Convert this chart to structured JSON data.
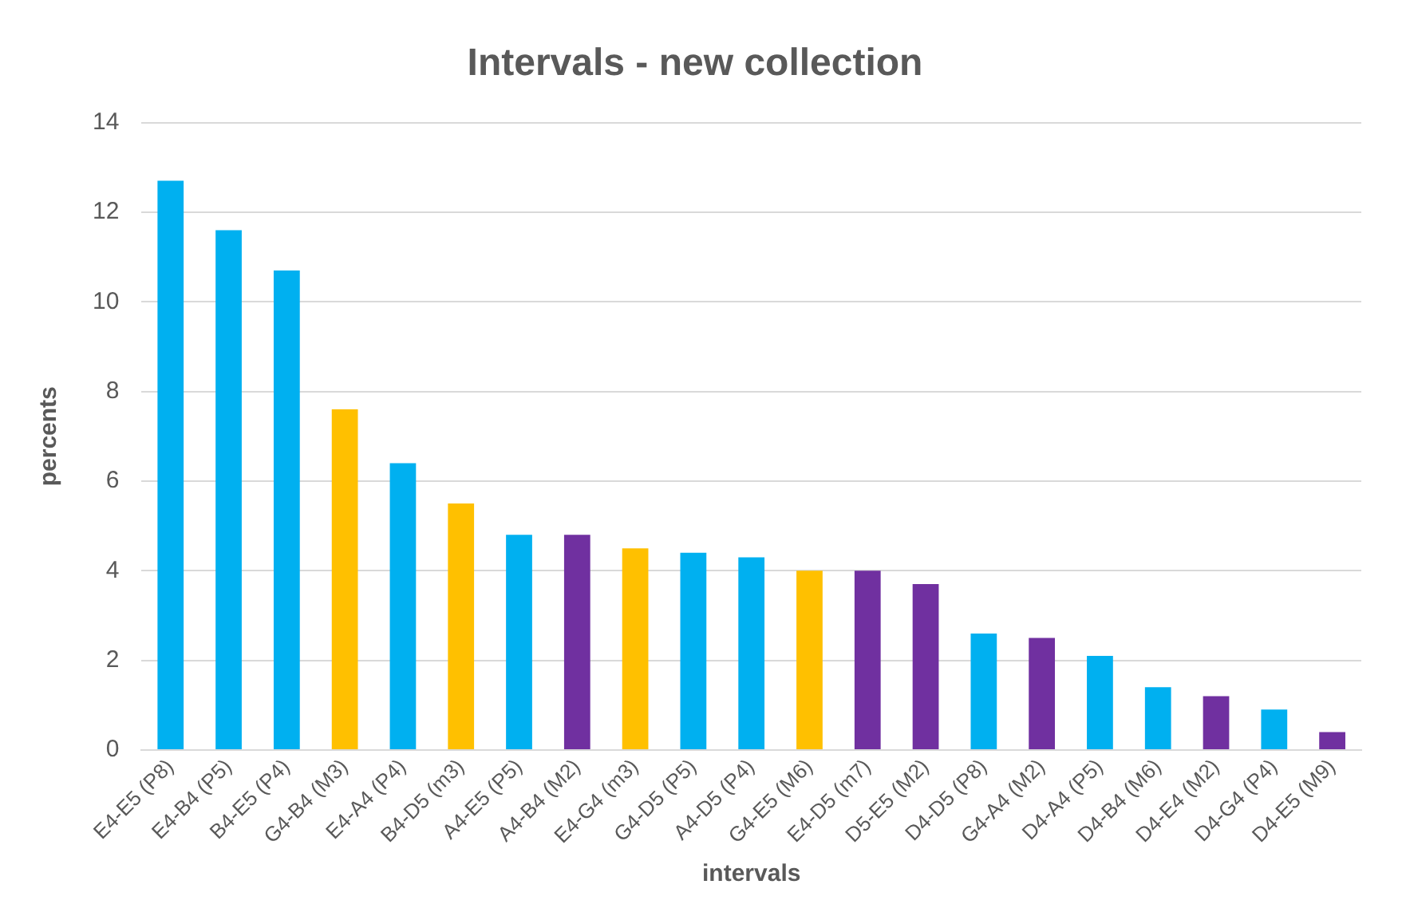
{
  "chart_data": {
    "type": "bar",
    "title": "Intervals - new collection",
    "xlabel": "intervals",
    "ylabel": "percents",
    "categories": [
      "E4-E5 (P8)",
      "E4-B4 (P5)",
      "B4-E5 (P4)",
      "G4-B4 (M3)",
      "E4-A4 (P4)",
      "B4-D5 (m3)",
      "A4-E5 (P5)",
      "A4-B4 (M2)",
      "E4-G4 (m3)",
      "G4-D5 (P5)",
      "A4-D5 (P4)",
      "G4-E5 (M6)",
      "E4-D5 (m7)",
      "D5-E5 (M2)",
      "D4-D5 (P8)",
      "G4-A4 (M2)",
      "D4-A4 (P5)",
      "D4-B4 (M6)",
      "D4-E4 (M2)",
      "D4-G4 (P4)",
      "D4-E5 (M9)"
    ],
    "values": [
      12.7,
      11.6,
      10.7,
      7.6,
      6.4,
      5.5,
      4.8,
      4.8,
      4.5,
      4.4,
      4.3,
      4.0,
      4.0,
      3.7,
      2.6,
      2.5,
      2.1,
      1.4,
      1.2,
      0.9,
      0.4
    ],
    "colors": [
      "#00b0f0",
      "#00b0f0",
      "#00b0f0",
      "#ffc000",
      "#00b0f0",
      "#ffc000",
      "#00b0f0",
      "#7030a0",
      "#ffc000",
      "#00b0f0",
      "#00b0f0",
      "#ffc000",
      "#7030a0",
      "#7030a0",
      "#00b0f0",
      "#7030a0",
      "#00b0f0",
      "#00b0f0",
      "#7030a0",
      "#00b0f0",
      "#7030a0"
    ],
    "ylim": [
      0,
      14
    ],
    "yticks": [
      0,
      2,
      4,
      6,
      8,
      10,
      12,
      14
    ],
    "grid": "y",
    "legend": false
  }
}
